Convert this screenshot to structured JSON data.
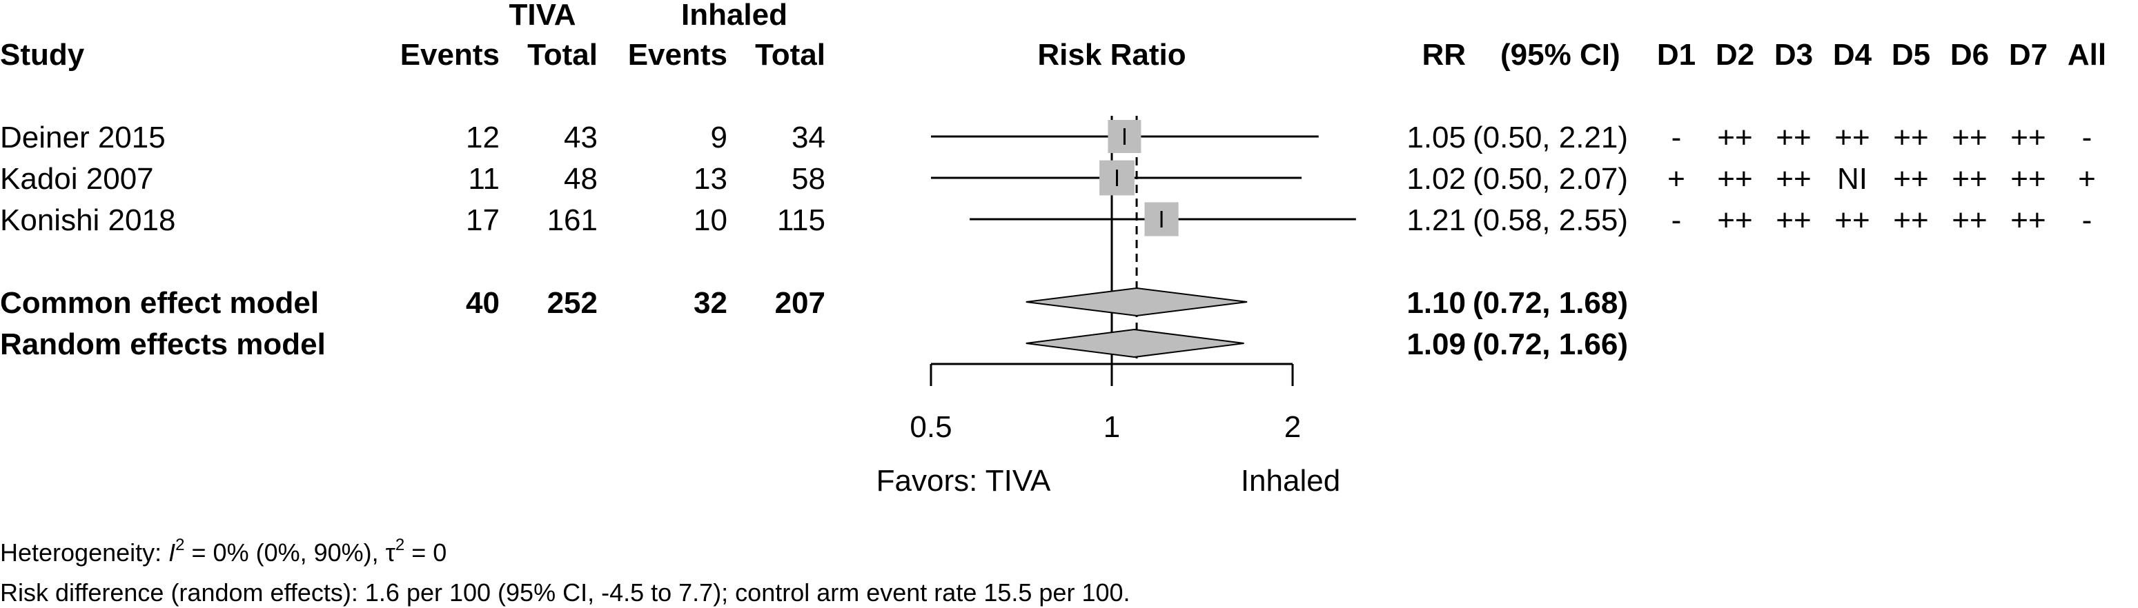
{
  "chart_data": {
    "type": "forest",
    "title": "Risk Ratio",
    "group_headers": {
      "experimental": "TIVA",
      "control": "Inhaled"
    },
    "columns": {
      "study": "Study",
      "events_e": "Events",
      "total_e": "Total",
      "events_c": "Events",
      "total_c": "Total",
      "rr": "RR",
      "ci": "(95% CI)",
      "domains": [
        "D1",
        "D2",
        "D3",
        "D4",
        "D5",
        "D6",
        "D7",
        "All"
      ]
    },
    "studies": [
      {
        "name": "Deiner 2015",
        "events_e": "12",
        "total_e": "43",
        "events_c": "9",
        "total_c": "34",
        "rr": 1.05,
        "lower": 0.5,
        "upper": 2.21,
        "rr_text": "1.05",
        "ci_text": "(0.50, 2.21)",
        "weight": 0.3,
        "rob": [
          "-",
          "++",
          "++",
          "++",
          "++",
          "++",
          "++",
          "-"
        ]
      },
      {
        "name": "Kadoi 2007",
        "events_e": "11",
        "total_e": "48",
        "events_c": "13",
        "total_c": "58",
        "rr": 1.02,
        "lower": 0.5,
        "upper": 2.07,
        "rr_text": "1.02",
        "ci_text": "(0.50, 2.07)",
        "weight": 0.37,
        "rob": [
          "+",
          "++",
          "++",
          "NI",
          "++",
          "++",
          "++",
          "+"
        ]
      },
      {
        "name": "Konishi 2018",
        "events_e": "17",
        "total_e": "161",
        "events_c": "10",
        "total_c": "115",
        "rr": 1.21,
        "lower": 0.58,
        "upper": 2.55,
        "rr_text": "1.21",
        "ci_text": "(0.58, 2.55)",
        "weight": 0.33,
        "rob": [
          "-",
          "++",
          "++",
          "++",
          "++",
          "++",
          "++",
          "-"
        ]
      }
    ],
    "pooled": [
      {
        "name": "Common effect model",
        "events_e": "40",
        "total_e": "252",
        "events_c": "32",
        "total_c": "207",
        "rr": 1.1,
        "lower": 0.72,
        "upper": 1.68,
        "rr_text": "1.10",
        "ci_text": "(0.72, 1.68)"
      },
      {
        "name": "Random effects model",
        "events_e": "",
        "total_e": "",
        "events_c": "",
        "total_c": "",
        "rr": 1.09,
        "lower": 0.72,
        "upper": 1.66,
        "rr_text": "1.09",
        "ci_text": "(0.72, 1.66)"
      }
    ],
    "x_axis": {
      "scale": "log",
      "ticks": [
        0.5,
        1,
        2
      ],
      "tick_labels": [
        "0.5",
        "1",
        "2"
      ],
      "range": [
        0.5,
        2
      ],
      "null_value": 1
    },
    "favors": {
      "left": "Favors: TIVA",
      "right": "Inhaled"
    },
    "heterogeneity": {
      "prefix": "Heterogeneity: ",
      "i2_symbol": "I",
      "i2_sup": "2",
      "i2_text": " = 0% (0%, 90%), ",
      "tau_symbol": "τ",
      "tau_sup": "2",
      "tau_text": " = 0"
    },
    "footnote": "Risk difference (random effects): 1.6 per 100 (95% CI, -4.5 to 7.7); control arm event rate 15.5 per 100.",
    "colors": {
      "square": "#bdbdbd",
      "diamond": "#bdbdbd",
      "line": "#000000"
    }
  }
}
